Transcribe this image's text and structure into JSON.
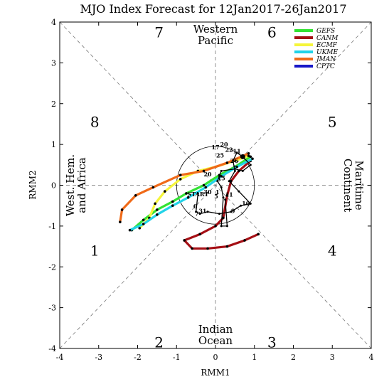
{
  "chart_data": {
    "type": "line",
    "title": "MJO Index Forecast for 12Jan2017-26Jan2017",
    "xlabel": "RMM1",
    "ylabel": "RMM2",
    "xlim": [
      -4,
      4
    ],
    "ylim": [
      -4,
      4
    ],
    "x_ticks": [
      "-4",
      "-3",
      "-2",
      "-1",
      "0",
      "1",
      "2",
      "3",
      "4"
    ],
    "y_ticks": [
      "-4",
      "-3",
      "-2",
      "-1",
      "0",
      "1",
      "2",
      "3",
      "4"
    ],
    "grid": false,
    "unit_circle_radius": 1,
    "legend_position": "top-right",
    "phases": [
      {
        "label": "1",
        "x": -3.1,
        "y": -1.6
      },
      {
        "label": "2",
        "x": -1.45,
        "y": -3.85
      },
      {
        "label": "3",
        "x": 1.45,
        "y": -3.85
      },
      {
        "label": "4",
        "x": 3.0,
        "y": -1.6
      },
      {
        "label": "5",
        "x": 3.0,
        "y": 1.55
      },
      {
        "label": "6",
        "x": 1.45,
        "y": 3.75
      },
      {
        "label": "7",
        "x": -1.45,
        "y": 3.75
      },
      {
        "label": "8",
        "x": -3.1,
        "y": 1.55
      }
    ],
    "regions": [
      {
        "lines": [
          "Western",
          "Pacific"
        ],
        "side": "top"
      },
      {
        "lines": [
          "Indian",
          "Ocean"
        ],
        "side": "bottom"
      },
      {
        "lines": [
          "West. Hem.",
          "and Africa"
        ],
        "side": "left"
      },
      {
        "lines": [
          "Maritime",
          "Continent"
        ],
        "side": "right"
      }
    ],
    "observed": {
      "name": "",
      "color": "#000000",
      "points": [
        {
          "x": -0.45,
          "y": -0.2
        },
        {
          "x": -0.5,
          "y": -0.65
        },
        {
          "x": -0.4,
          "y": -0.7
        },
        {
          "x": -0.2,
          "y": -0.65
        },
        {
          "x": 0.1,
          "y": -0.7
        },
        {
          "x": 0.4,
          "y": -0.65
        },
        {
          "x": 0.65,
          "y": -0.5
        },
        {
          "x": 0.9,
          "y": -0.45
        },
        {
          "x": 0.6,
          "y": -0.15
        },
        {
          "x": 0.35,
          "y": 0.1
        },
        {
          "x": 0.5,
          "y": 0.35
        },
        {
          "x": 0.45,
          "y": 0.6
        },
        {
          "x": 0.55,
          "y": 0.8
        },
        {
          "x": 0.7,
          "y": 0.7
        },
        {
          "x": 0.9,
          "y": 0.5
        },
        {
          "x": 0.7,
          "y": 0.35
        },
        {
          "x": 0.5,
          "y": 0.4
        },
        {
          "x": 0.15,
          "y": 0.35
        },
        {
          "x": 0.05,
          "y": 0.1
        },
        {
          "x": 0.15,
          "y": -0.05
        },
        {
          "x": 0.2,
          "y": -0.3
        },
        {
          "x": 0.15,
          "y": -1.0
        },
        {
          "x": 0.3,
          "y": -1.0
        },
        {
          "x": 0.25,
          "y": -0.35
        }
      ],
      "labels": [
        {
          "text": "START",
          "x": -0.45,
          "y": -0.27
        },
        {
          "text": "30",
          "x": -0.2,
          "y": -0.22
        },
        {
          "text": "1",
          "x": 0.05,
          "y": -0.22
        },
        {
          "text": "5",
          "x": 0.02,
          "y": -0.32
        },
        {
          "text": "31",
          "x": -0.33,
          "y": -0.68
        },
        {
          "text": "7",
          "x": -0.48,
          "y": -0.75
        },
        {
          "text": "6",
          "x": -0.52,
          "y": -0.57
        },
        {
          "text": "9",
          "x": 0.45,
          "y": -0.68
        },
        {
          "text": "10",
          "x": 0.78,
          "y": -0.5
        },
        {
          "text": "11",
          "x": 0.35,
          "y": -0.28
        },
        {
          "text": "15",
          "x": 0.15,
          "y": 0.12
        },
        {
          "text": "20",
          "x": -0.2,
          "y": 0.22
        },
        {
          "text": "25",
          "x": 0.12,
          "y": 0.68
        },
        {
          "text": "17",
          "x": 0.0,
          "y": 0.88
        },
        {
          "text": "20",
          "x": 0.22,
          "y": 0.95
        },
        {
          "text": "22",
          "x": 0.35,
          "y": 0.82
        },
        {
          "text": "11",
          "x": 0.55,
          "y": 0.78
        },
        {
          "text": "26",
          "x": 0.48,
          "y": 0.55
        }
      ]
    },
    "series": [
      {
        "name": "GEFS",
        "color": "#33e233",
        "points": [
          {
            "x": 0.9,
            "y": 0.7
          },
          {
            "x": 0.5,
            "y": 0.45
          },
          {
            "x": 0.1,
            "y": 0.25
          },
          {
            "x": -0.3,
            "y": 0.0
          },
          {
            "x": -0.75,
            "y": -0.2
          },
          {
            "x": -1.1,
            "y": -0.4
          },
          {
            "x": -1.5,
            "y": -0.6
          },
          {
            "x": -1.85,
            "y": -0.85
          },
          {
            "x": -2.15,
            "y": -1.1
          }
        ]
      },
      {
        "name": "CANM",
        "color": "#a50f15",
        "points": [
          {
            "x": 0.9,
            "y": 0.6
          },
          {
            "x": 0.6,
            "y": 0.35
          },
          {
            "x": 0.4,
            "y": 0.1
          },
          {
            "x": 0.3,
            "y": -0.25
          },
          {
            "x": 0.2,
            "y": -0.8
          },
          {
            "x": 0.0,
            "y": -1.0
          },
          {
            "x": -0.4,
            "y": -1.2
          },
          {
            "x": -0.8,
            "y": -1.35
          },
          {
            "x": -0.6,
            "y": -1.55
          },
          {
            "x": -0.2,
            "y": -1.55
          },
          {
            "x": 0.3,
            "y": -1.5
          },
          {
            "x": 0.75,
            "y": -1.35
          },
          {
            "x": 1.1,
            "y": -1.2
          }
        ]
      },
      {
        "name": "ECMF",
        "color": "#f5f53b",
        "points": [
          {
            "x": 0.85,
            "y": 0.72
          },
          {
            "x": 0.5,
            "y": 0.6
          },
          {
            "x": 0.0,
            "y": 0.45
          },
          {
            "x": -0.45,
            "y": 0.35
          },
          {
            "x": -0.9,
            "y": 0.15
          },
          {
            "x": -1.3,
            "y": -0.15
          },
          {
            "x": -1.55,
            "y": -0.45
          },
          {
            "x": -1.7,
            "y": -0.8
          },
          {
            "x": -1.95,
            "y": -1.05
          }
        ]
      },
      {
        "name": "UKME",
        "color": "#22d3e8",
        "points": [
          {
            "x": 0.95,
            "y": 0.65
          },
          {
            "x": 0.55,
            "y": 0.45
          },
          {
            "x": 0.15,
            "y": 0.22
          },
          {
            "x": -0.25,
            "y": -0.05
          },
          {
            "x": -0.7,
            "y": -0.3
          },
          {
            "x": -1.1,
            "y": -0.5
          },
          {
            "x": -1.5,
            "y": -0.72
          },
          {
            "x": -1.85,
            "y": -0.95
          },
          {
            "x": -2.2,
            "y": -1.1
          }
        ]
      },
      {
        "name": "JMAN",
        "color": "#f06a18",
        "points": [
          {
            "x": 0.85,
            "y": 0.78
          },
          {
            "x": 0.3,
            "y": 0.55
          },
          {
            "x": -0.3,
            "y": 0.35
          },
          {
            "x": -0.9,
            "y": 0.25
          },
          {
            "x": -1.6,
            "y": -0.05
          },
          {
            "x": -2.05,
            "y": -0.25
          },
          {
            "x": -2.4,
            "y": -0.6
          },
          {
            "x": -2.45,
            "y": -0.9
          }
        ]
      },
      {
        "name": "CPTC",
        "color": "#1818c8",
        "points": []
      }
    ]
  }
}
